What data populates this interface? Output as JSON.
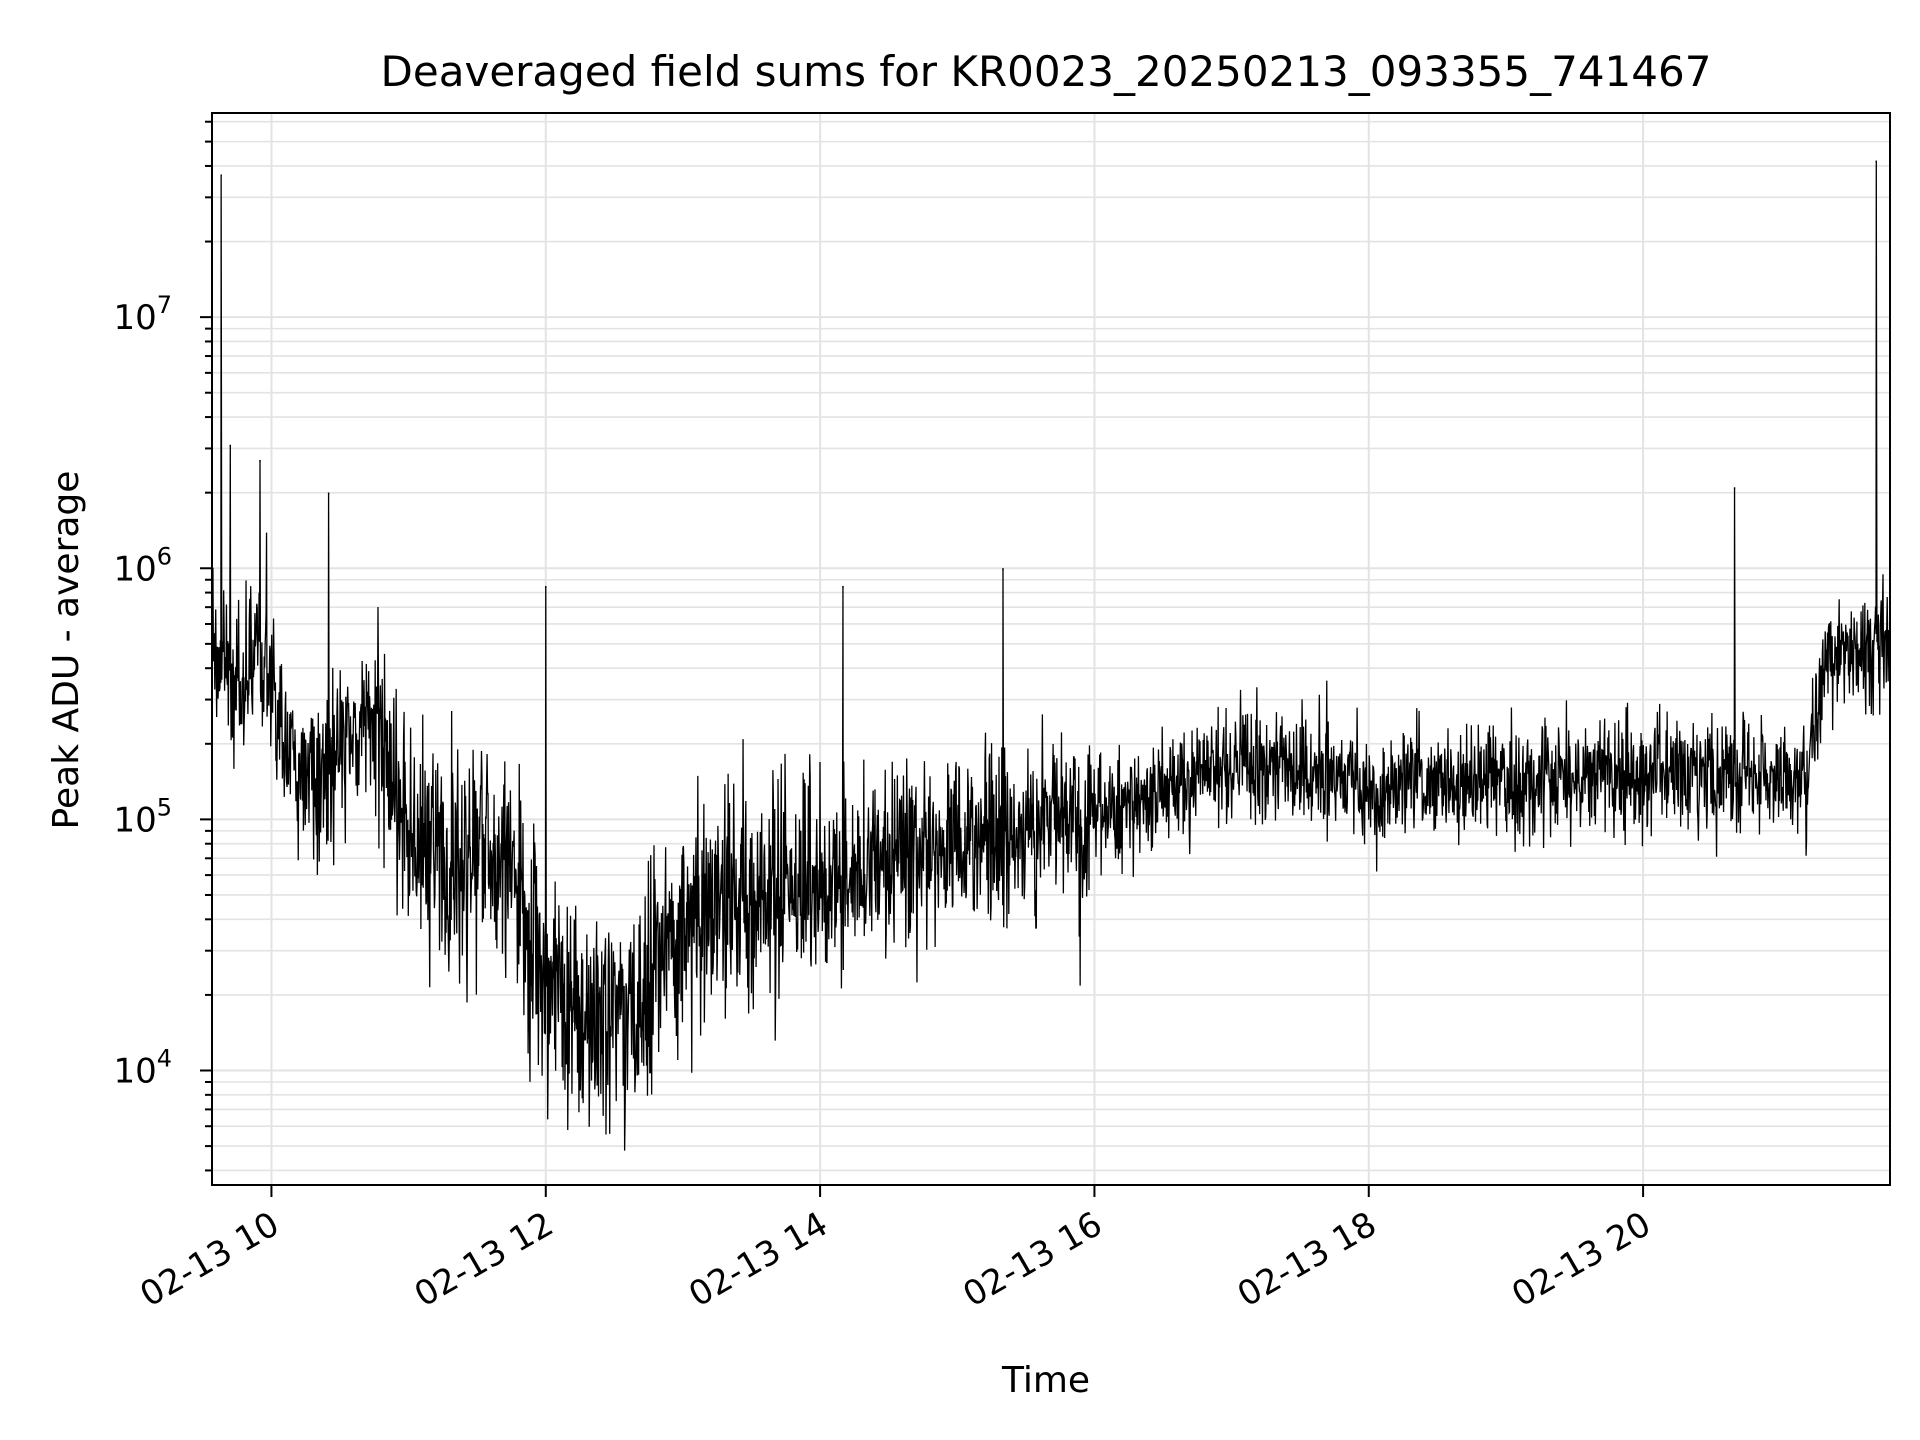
{
  "chart_data": {
    "type": "line",
    "title": "Deaveraged field sums for KR0023_20250213_093355_741467",
    "xlabel": "Time",
    "ylabel": "Peak ADU - average",
    "yscale": "log",
    "ylim": [
      3500,
      65000000
    ],
    "xlim": [
      "2025-02-13 09:34",
      "2025-02-13 21:48"
    ],
    "grid": true,
    "line_color": "#000000",
    "x_ticks": [
      {
        "value": "2025-02-13 10:00",
        "label": "02-13 10"
      },
      {
        "value": "2025-02-13 12:00",
        "label": "02-13 12"
      },
      {
        "value": "2025-02-13 14:00",
        "label": "02-13 14"
      },
      {
        "value": "2025-02-13 16:00",
        "label": "02-13 16"
      },
      {
        "value": "2025-02-13 18:00",
        "label": "02-13 18"
      },
      {
        "value": "2025-02-13 20:00",
        "label": "02-13 20"
      }
    ],
    "y_ticks": [
      {
        "value": 10000,
        "base": "10",
        "exp": "4"
      },
      {
        "value": 100000,
        "base": "10",
        "exp": "5"
      },
      {
        "value": 1000000,
        "base": "10",
        "exp": "6"
      },
      {
        "value": 10000000,
        "base": "10",
        "exp": "7"
      }
    ],
    "series": [
      {
        "x": [
          "2025-02-13 09:34",
          "2025-02-13 09:38",
          "2025-02-13 09:42",
          "2025-02-13 09:46",
          "2025-02-13 09:50",
          "2025-02-13 09:54",
          "2025-02-13 10:00",
          "2025-02-13 10:10",
          "2025-02-13 10:20",
          "2025-02-13 10:30",
          "2025-02-13 10:40",
          "2025-02-13 10:50",
          "2025-02-13 11:00",
          "2025-02-13 11:15",
          "2025-02-13 11:30",
          "2025-02-13 11:45",
          "2025-02-13 12:00",
          "2025-02-13 12:15",
          "2025-02-13 12:30",
          "2025-02-13 12:45",
          "2025-02-13 13:00",
          "2025-02-13 13:15",
          "2025-02-13 13:30",
          "2025-02-13 13:45",
          "2025-02-13 14:00",
          "2025-02-13 14:30",
          "2025-02-13 15:00",
          "2025-02-13 15:30",
          "2025-02-13 16:00",
          "2025-02-13 16:30",
          "2025-02-13 17:00",
          "2025-02-13 17:30",
          "2025-02-13 18:00",
          "2025-02-13 18:30",
          "2025-02-13 19:00",
          "2025-02-13 19:30",
          "2025-02-13 20:00",
          "2025-02-13 20:30",
          "2025-02-13 21:00",
          "2025-02-13 21:12",
          "2025-02-13 21:20",
          "2025-02-13 21:30",
          "2025-02-13 21:40",
          "2025-02-13 21:48"
        ],
        "y": [
          450000,
          400000,
          350000,
          300000,
          450000,
          500000,
          280000,
          160000,
          150000,
          200000,
          250000,
          200000,
          80000,
          60000,
          80000,
          60000,
          20000,
          18000,
          18000,
          20000,
          40000,
          50000,
          45000,
          50000,
          60000,
          70000,
          80000,
          90000,
          100000,
          130000,
          160000,
          160000,
          130000,
          140000,
          140000,
          150000,
          150000,
          155000,
          150000,
          150000,
          450000,
          450000,
          500000,
          500000
        ]
      }
    ],
    "spikes": [
      {
        "x": "2025-02-13 09:38",
        "y": 37000000
      },
      {
        "x": "2025-02-13 09:42",
        "y": 3100000
      },
      {
        "x": "2025-02-13 09:55",
        "y": 2700000
      },
      {
        "x": "2025-02-13 10:25",
        "y": 2000000
      },
      {
        "x": "2025-02-13 12:00",
        "y": 850000
      },
      {
        "x": "2025-02-13 14:10",
        "y": 850000
      },
      {
        "x": "2025-02-13 15:20",
        "y": 1000000
      },
      {
        "x": "2025-02-13 20:40",
        "y": 2100000
      },
      {
        "x": "2025-02-13 21:42",
        "y": 42000000
      }
    ]
  }
}
